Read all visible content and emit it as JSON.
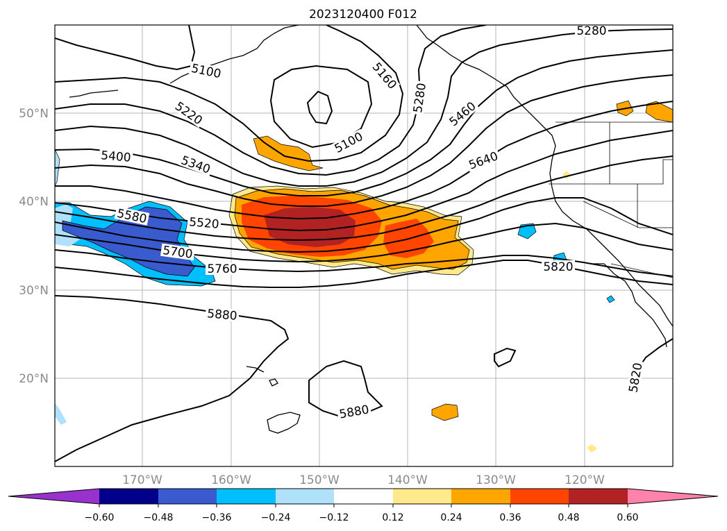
{
  "title": "2023120400 F012",
  "map": {
    "lat_labels": [
      "50°N",
      "40°N",
      "30°N",
      "20°N"
    ],
    "lon_labels": [
      "170°W",
      "160°W",
      "150°W",
      "140°W",
      "130°W",
      "120°W"
    ],
    "contour_labels": {
      "c5100a": "5100",
      "c5100b": "5100",
      "c5160": "5160",
      "c5220": "5220",
      "c5280a": "5280",
      "c5280b": "5280",
      "c5340": "5340",
      "c5400": "5400",
      "c5460": "5460",
      "c5520": "5520",
      "c5580": "5580",
      "c5640": "5640",
      "c5700": "5700",
      "c5760": "5760",
      "c5820a": "5820",
      "c5820b": "5820",
      "c5880a": "5880",
      "c5880b": "5880"
    }
  },
  "colorbar": {
    "ticks": [
      "−0.60",
      "−0.48",
      "−0.36",
      "−0.24",
      "−0.12",
      "0.12",
      "0.24",
      "0.36",
      "0.48",
      "0.60"
    ],
    "colors": {
      "under": "#9932cc",
      "b1": "#00008b",
      "b2": "#3a5bcd",
      "b3": "#00bfff",
      "b4": "#afe1fa",
      "b5": "#ffffff",
      "b6": "#ffe98a",
      "b7": "#ffa500",
      "b8": "#ff4500",
      "b9": "#b22222",
      "over": "#ff82ab"
    }
  }
}
